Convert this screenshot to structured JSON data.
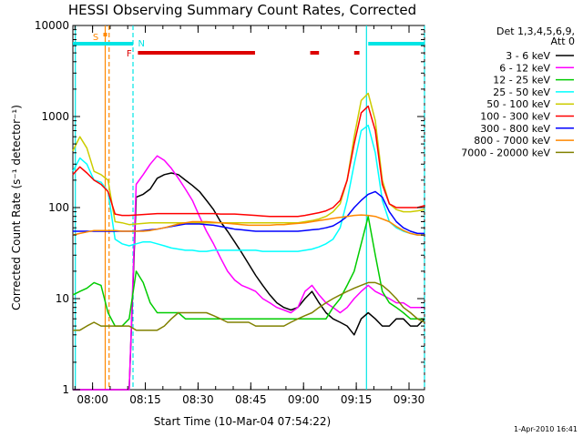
{
  "chart_data": {
    "type": "line",
    "title": "HESSI Observing Summary Count Rates, Corrected",
    "xlabel": "Start Time (10-Mar-04 07:54:22)",
    "ylabel": "Corrected Count Rate (s⁻¹ detector⁻¹)",
    "x_unit": "minutes after 07:54:22",
    "xlim": [
      0,
      100
    ],
    "ylim": [
      1,
      10000
    ],
    "y_scale": "log",
    "x_ticks": [
      {
        "label": "08:00",
        "x": 5.6
      },
      {
        "label": "08:15",
        "x": 20.6
      },
      {
        "label": "08:30",
        "x": 35.6
      },
      {
        "label": "08:45",
        "x": 50.6
      },
      {
        "label": "09:00",
        "x": 65.6
      },
      {
        "label": "09:15",
        "x": 80.6
      },
      {
        "label": "09:30",
        "x": 95.6
      }
    ],
    "y_ticks": [
      {
        "label": "1",
        "y": 1
      },
      {
        "label": "10",
        "y": 10
      },
      {
        "label": "100",
        "y": 100
      },
      {
        "label": "1000",
        "y": 1000
      },
      {
        "label": "10000",
        "y": 10000
      }
    ],
    "legend_header": [
      "Det 1,3,4,5,6,9,",
      "Att 0"
    ],
    "legend_position": "right",
    "series": [
      {
        "name": "3 - 6 keV",
        "color": "#000000",
        "x": [
          0,
          2,
          4,
          6,
          8,
          10,
          12,
          14,
          16,
          18,
          20,
          22,
          24,
          26,
          28,
          30,
          32,
          34,
          36,
          38,
          40,
          42,
          44,
          46,
          48,
          50,
          52,
          54,
          56,
          58,
          60,
          62,
          64,
          66,
          68,
          70,
          72,
          74,
          76,
          78,
          80,
          82,
          84,
          86,
          88,
          90,
          92,
          94,
          96,
          98,
          100
        ],
        "y": [
          1,
          1,
          1,
          1,
          1,
          1,
          1,
          1,
          1,
          130,
          140,
          160,
          210,
          230,
          240,
          230,
          200,
          175,
          150,
          120,
          95,
          70,
          55,
          42,
          32,
          24,
          18,
          14,
          11,
          9,
          8,
          7.5,
          8,
          10,
          12,
          9,
          7,
          6,
          5.5,
          5,
          4,
          6,
          7,
          6,
          5,
          5,
          6,
          6,
          5,
          5,
          6
        ]
      },
      {
        "name": "6 - 12 keV",
        "color": "#ff00ff",
        "x": [
          0,
          2,
          4,
          6,
          8,
          10,
          12,
          14,
          16,
          18,
          20,
          22,
          24,
          26,
          28,
          30,
          32,
          34,
          36,
          38,
          40,
          42,
          44,
          46,
          48,
          50,
          52,
          54,
          56,
          58,
          60,
          62,
          64,
          66,
          68,
          70,
          72,
          74,
          76,
          78,
          80,
          82,
          84,
          86,
          88,
          90,
          92,
          94,
          96,
          98,
          100
        ],
        "y": [
          1,
          1,
          1,
          1,
          1,
          1,
          1,
          1,
          1,
          180,
          230,
          300,
          370,
          330,
          270,
          210,
          160,
          120,
          80,
          55,
          40,
          28,
          20,
          16,
          14,
          13,
          12,
          10,
          9,
          8,
          7.5,
          7,
          8,
          12,
          14,
          11,
          9,
          8,
          7,
          8,
          10,
          12,
          14,
          12,
          11,
          10,
          9,
          9,
          8,
          8,
          8
        ]
      },
      {
        "name": "12 - 25 keV",
        "color": "#00cc00",
        "x": [
          0,
          2,
          4,
          6,
          8,
          10,
          12,
          14,
          16,
          18,
          20,
          22,
          24,
          26,
          28,
          30,
          32,
          34,
          36,
          38,
          40,
          42,
          44,
          46,
          48,
          50,
          52,
          54,
          56,
          58,
          60,
          62,
          64,
          66,
          68,
          70,
          72,
          74,
          76,
          78,
          80,
          82,
          84,
          86,
          88,
          90,
          92,
          94,
          96,
          98,
          100
        ],
        "y": [
          11,
          12,
          13,
          15,
          14,
          7,
          5,
          5,
          6,
          20,
          15,
          9,
          7,
          7,
          7,
          7,
          6,
          6,
          6,
          6,
          6,
          6,
          6,
          6,
          6,
          6,
          6,
          6,
          6,
          6,
          6,
          6,
          6,
          6,
          6,
          6,
          6,
          8,
          10,
          14,
          20,
          40,
          80,
          30,
          12,
          9,
          8,
          7,
          6,
          6,
          6
        ]
      },
      {
        "name": "25 - 50 keV",
        "color": "#00ffff",
        "x": [
          0,
          2,
          4,
          6,
          8,
          10,
          12,
          14,
          16,
          18,
          20,
          22,
          24,
          26,
          28,
          30,
          32,
          34,
          36,
          38,
          40,
          42,
          44,
          46,
          48,
          50,
          52,
          54,
          56,
          58,
          60,
          62,
          64,
          66,
          68,
          70,
          72,
          74,
          76,
          78,
          80,
          82,
          84,
          86,
          88,
          90,
          92,
          94,
          96,
          98,
          100
        ],
        "y": [
          250,
          350,
          300,
          200,
          190,
          150,
          45,
          40,
          38,
          40,
          42,
          42,
          40,
          38,
          36,
          35,
          34,
          34,
          33,
          33,
          34,
          34,
          34,
          34,
          34,
          34,
          34,
          33,
          33,
          33,
          33,
          33,
          33,
          34,
          35,
          37,
          40,
          45,
          60,
          120,
          300,
          700,
          800,
          400,
          120,
          70,
          60,
          55,
          52,
          50,
          50
        ]
      },
      {
        "name": "50 - 100 keV",
        "color": "#cccc00",
        "x": [
          0,
          2,
          4,
          6,
          8,
          10,
          12,
          14,
          16,
          18,
          20,
          22,
          24,
          26,
          28,
          30,
          32,
          34,
          36,
          38,
          40,
          42,
          44,
          46,
          48,
          50,
          52,
          54,
          56,
          58,
          60,
          62,
          64,
          66,
          68,
          70,
          72,
          74,
          76,
          78,
          80,
          82,
          84,
          86,
          88,
          90,
          92,
          94,
          96,
          98,
          100
        ],
        "y": [
          420,
          600,
          450,
          250,
          230,
          200,
          70,
          68,
          65,
          66,
          67,
          68,
          68,
          68,
          68,
          68,
          68,
          68,
          68,
          68,
          68,
          68,
          68,
          68,
          68,
          68,
          68,
          68,
          68,
          68,
          68,
          68,
          68,
          70,
          72,
          75,
          80,
          90,
          110,
          200,
          600,
          1500,
          1800,
          900,
          200,
          110,
          95,
          90,
          90,
          92,
          95
        ]
      },
      {
        "name": "100 - 300 keV",
        "color": "#ff0000",
        "x": [
          0,
          2,
          4,
          6,
          8,
          10,
          12,
          14,
          16,
          18,
          20,
          22,
          24,
          26,
          28,
          30,
          32,
          34,
          36,
          38,
          40,
          42,
          44,
          46,
          48,
          50,
          52,
          54,
          56,
          58,
          60,
          62,
          64,
          66,
          68,
          70,
          72,
          74,
          76,
          78,
          80,
          82,
          84,
          86,
          88,
          90,
          92,
          94,
          96,
          98,
          100
        ],
        "y": [
          230,
          280,
          240,
          200,
          180,
          150,
          85,
          82,
          82,
          83,
          84,
          85,
          86,
          86,
          86,
          86,
          86,
          86,
          86,
          86,
          86,
          85,
          85,
          85,
          84,
          83,
          82,
          81,
          80,
          80,
          80,
          80,
          80,
          82,
          85,
          88,
          92,
          100,
          120,
          200,
          500,
          1100,
          1300,
          700,
          180,
          110,
          100,
          100,
          100,
          100,
          105
        ]
      },
      {
        "name": "300 - 800 keV",
        "color": "#0000ff",
        "x": [
          0,
          2,
          4,
          6,
          8,
          10,
          12,
          14,
          16,
          18,
          20,
          22,
          24,
          26,
          28,
          30,
          32,
          34,
          36,
          38,
          40,
          42,
          44,
          46,
          48,
          50,
          52,
          54,
          56,
          58,
          60,
          62,
          64,
          66,
          68,
          70,
          72,
          74,
          76,
          78,
          80,
          82,
          84,
          86,
          88,
          90,
          92,
          94,
          96,
          98,
          100
        ],
        "y": [
          55,
          55,
          55,
          55,
          55,
          55,
          55,
          55,
          55,
          55,
          56,
          57,
          58,
          60,
          62,
          64,
          66,
          66,
          66,
          65,
          64,
          62,
          60,
          58,
          57,
          56,
          55,
          55,
          55,
          55,
          55,
          55,
          55,
          56,
          57,
          58,
          60,
          63,
          70,
          80,
          100,
          120,
          140,
          150,
          130,
          90,
          70,
          60,
          55,
          52,
          52
        ]
      },
      {
        "name": "800 - 7000 keV",
        "color": "#ff8800",
        "x": [
          0,
          2,
          4,
          6,
          8,
          10,
          12,
          14,
          16,
          18,
          20,
          22,
          24,
          26,
          28,
          30,
          32,
          34,
          36,
          38,
          40,
          42,
          44,
          46,
          48,
          50,
          52,
          54,
          56,
          58,
          60,
          62,
          64,
          66,
          68,
          70,
          72,
          74,
          76,
          78,
          80,
          82,
          84,
          86,
          88,
          90,
          92,
          94,
          96,
          98,
          100
        ],
        "y": [
          50,
          52,
          54,
          56,
          56,
          56,
          56,
          55,
          55,
          55,
          55,
          56,
          58,
          60,
          63,
          66,
          68,
          70,
          70,
          70,
          69,
          68,
          67,
          66,
          65,
          64,
          64,
          64,
          64,
          65,
          65,
          66,
          67,
          68,
          70,
          72,
          74,
          76,
          78,
          80,
          82,
          83,
          82,
          80,
          75,
          70,
          62,
          56,
          52,
          50,
          50
        ]
      },
      {
        "name": "7000 - 20000 keV",
        "color": "#808000",
        "x": [
          0,
          2,
          4,
          6,
          8,
          10,
          12,
          14,
          16,
          18,
          20,
          22,
          24,
          26,
          28,
          30,
          32,
          34,
          36,
          38,
          40,
          42,
          44,
          46,
          48,
          50,
          52,
          54,
          56,
          58,
          60,
          62,
          64,
          66,
          68,
          70,
          72,
          74,
          76,
          78,
          80,
          82,
          84,
          86,
          88,
          90,
          92,
          94,
          96,
          98,
          100
        ],
        "y": [
          4.5,
          4.5,
          5,
          5.5,
          5,
          5,
          5,
          5,
          5,
          4.5,
          4.5,
          4.5,
          4.5,
          5,
          6,
          7,
          7,
          7,
          7,
          7,
          6.5,
          6,
          5.5,
          5.5,
          5.5,
          5.5,
          5,
          5,
          5,
          5,
          5,
          5.5,
          6,
          6.5,
          7,
          8,
          9,
          10,
          11,
          12,
          13,
          14,
          15,
          15,
          14,
          12,
          10,
          8,
          7,
          6,
          5.5
        ]
      }
    ],
    "status_bars": [
      {
        "label": "S",
        "color": "#ff8800",
        "segments": []
      },
      {
        "label": "F",
        "color": "#dd0000",
        "segments": [
          [
            18.5,
            51.8
          ],
          [
            67.5,
            70
          ],
          [
            80,
            81.5
          ]
        ]
      },
      {
        "label": "N",
        "color": "#00e5e5",
        "segments": [
          [
            0,
            17.1
          ],
          [
            84,
            100
          ]
        ]
      }
    ],
    "vertical_lines": [
      {
        "x": 0.7,
        "color": "#00e5e5",
        "style": "solid"
      },
      {
        "x": 17.1,
        "color": "#00e5e5",
        "style": "dashed"
      },
      {
        "x": 83.5,
        "color": "#00e5e5",
        "style": "solid"
      },
      {
        "x": 100,
        "color": "#00e5e5",
        "style": "dashed"
      },
      {
        "x": 9.2,
        "color": "#ff8800",
        "style": "solid"
      },
      {
        "x": 10.3,
        "color": "#ff8800",
        "style": "dashed"
      }
    ],
    "stamp": "1-Apr-2010 16:41",
    "grid": false
  }
}
